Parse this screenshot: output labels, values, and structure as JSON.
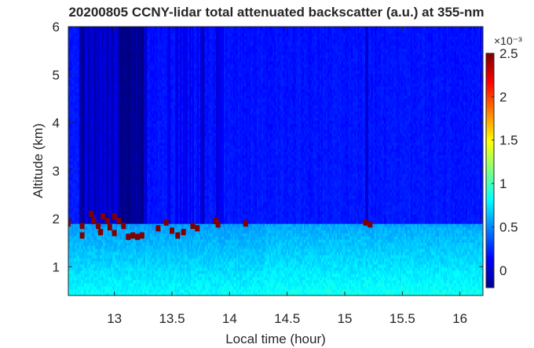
{
  "chart_data": {
    "type": "heatmap",
    "title": "20200805 CCNY-lidar total attenuated backscatter (a.u.) at 355-nm",
    "xlabel": "Local time (hour)",
    "ylabel": "Altitude (km)",
    "xlim": [
      12.6,
      16.2
    ],
    "ylim": [
      0.4,
      6
    ],
    "xticks": [
      13,
      13.5,
      14,
      14.5,
      15,
      15.5,
      16
    ],
    "xtick_labels": [
      "13",
      "13.5",
      "14",
      "14.5",
      "15",
      "15.5",
      "16"
    ],
    "yticks": [
      1,
      2,
      3,
      4,
      5,
      6
    ],
    "ytick_labels": [
      "1",
      "2",
      "3",
      "4",
      "5",
      "6"
    ],
    "colorbar": {
      "label": "",
      "multiplier": "×10⁻³",
      "range": [
        -0.2,
        2.5
      ],
      "ticks": [
        0,
        0.5,
        1,
        1.5,
        2,
        2.5
      ],
      "tick_labels": [
        "0",
        "0.5",
        "1",
        "1.5",
        "2",
        "2.5"
      ],
      "colormap": "jet"
    },
    "boundary_layer_top_km": 1.9,
    "cloud_cells": [
      {
        "x": 12.6,
        "y": 1.9,
        "v": 2.5
      },
      {
        "x": 12.72,
        "y": 1.85,
        "v": 2.5
      },
      {
        "x": 12.72,
        "y": 1.65,
        "v": 2.5
      },
      {
        "x": 12.8,
        "y": 2.1,
        "v": 2.5
      },
      {
        "x": 12.82,
        "y": 1.95,
        "v": 2.5
      },
      {
        "x": 12.86,
        "y": 1.85,
        "v": 2.5
      },
      {
        "x": 12.88,
        "y": 1.72,
        "v": 2.5
      },
      {
        "x": 12.9,
        "y": 2.05,
        "v": 2.5
      },
      {
        "x": 12.94,
        "y": 1.95,
        "v": 2.5
      },
      {
        "x": 12.96,
        "y": 1.82,
        "v": 2.5
      },
      {
        "x": 13.0,
        "y": 2.05,
        "v": 2.5
      },
      {
        "x": 13.0,
        "y": 1.7,
        "v": 2.5
      },
      {
        "x": 13.04,
        "y": 1.95,
        "v": 2.5
      },
      {
        "x": 13.08,
        "y": 1.85,
        "v": 2.5
      },
      {
        "x": 13.12,
        "y": 1.62,
        "v": 2.5
      },
      {
        "x": 13.16,
        "y": 1.65,
        "v": 2.5
      },
      {
        "x": 13.2,
        "y": 1.62,
        "v": 2.5
      },
      {
        "x": 13.24,
        "y": 1.65,
        "v": 2.5
      },
      {
        "x": 13.38,
        "y": 1.8,
        "v": 2.5
      },
      {
        "x": 13.45,
        "y": 1.92,
        "v": 2.5
      },
      {
        "x": 13.5,
        "y": 1.75,
        "v": 2.5
      },
      {
        "x": 13.55,
        "y": 1.65,
        "v": 2.5
      },
      {
        "x": 13.6,
        "y": 1.72,
        "v": 2.5
      },
      {
        "x": 13.68,
        "y": 1.85,
        "v": 2.5
      },
      {
        "x": 13.72,
        "y": 1.8,
        "v": 2.5
      },
      {
        "x": 13.88,
        "y": 1.95,
        "v": 2.5
      },
      {
        "x": 13.9,
        "y": 1.88,
        "v": 2.5
      },
      {
        "x": 14.14,
        "y": 1.9,
        "v": 2.5
      },
      {
        "x": 15.18,
        "y": 1.92,
        "v": 2.5
      },
      {
        "x": 15.22,
        "y": 1.88,
        "v": 2.5
      }
    ]
  }
}
